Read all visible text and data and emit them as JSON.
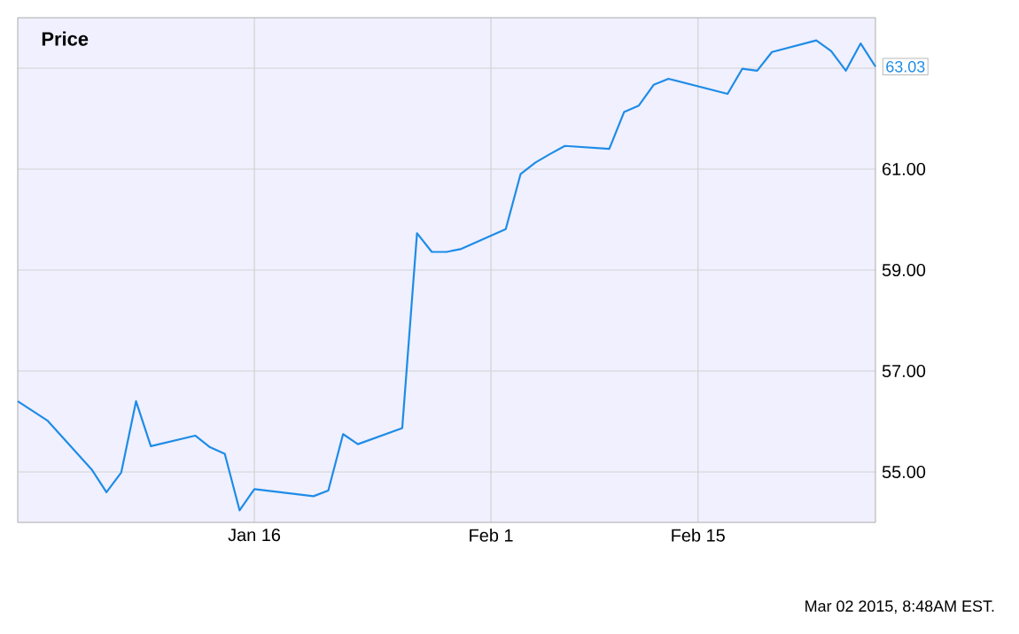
{
  "chart_data": {
    "type": "line",
    "title": "Price",
    "x": [
      "2014-12-31",
      "2015-01-02",
      "2015-01-05",
      "2015-01-06",
      "2015-01-07",
      "2015-01-08",
      "2015-01-09",
      "2015-01-12",
      "2015-01-13",
      "2015-01-14",
      "2015-01-15",
      "2015-01-16",
      "2015-01-20",
      "2015-01-21",
      "2015-01-22",
      "2015-01-23",
      "2015-01-26",
      "2015-01-27",
      "2015-01-28",
      "2015-01-29",
      "2015-01-30",
      "2015-02-02",
      "2015-02-03",
      "2015-02-04",
      "2015-02-05",
      "2015-02-06",
      "2015-02-09",
      "2015-02-10",
      "2015-02-11",
      "2015-02-12",
      "2015-02-13",
      "2015-02-17",
      "2015-02-18",
      "2015-02-19",
      "2015-02-20",
      "2015-02-23",
      "2015-02-24",
      "2015-02-25",
      "2015-02-26",
      "2015-02-27"
    ],
    "series": [
      {
        "color": "#1e8ce6",
        "values": [
          56.4,
          56.02,
          55.05,
          54.6,
          54.99,
          56.4,
          55.51,
          55.72,
          55.49,
          55.36,
          54.24,
          54.66,
          54.52,
          54.63,
          55.75,
          55.55,
          55.87,
          59.73,
          59.36,
          59.36,
          59.42,
          59.81,
          60.9,
          61.13,
          61.3,
          61.46,
          61.4,
          62.13,
          62.26,
          62.67,
          62.79,
          62.49,
          62.99,
          62.95,
          63.32,
          63.55,
          63.34,
          62.95,
          63.49,
          63.03
        ]
      }
    ],
    "xlim": [
      "2014-12-31",
      "2015-02-27"
    ],
    "xticks": [
      {
        "value": "2015-01-16",
        "label": "Jan 16"
      },
      {
        "value": "2015-02-01",
        "label": "Feb 1"
      },
      {
        "value": "2015-02-15",
        "label": "Feb 15"
      }
    ],
    "ylim": [
      54,
      64
    ],
    "yticks": [
      {
        "value": 55,
        "label": "55.00"
      },
      {
        "value": 57,
        "label": "57.00"
      },
      {
        "value": 59,
        "label": "59.00"
      },
      {
        "value": 61,
        "label": "61.00"
      },
      {
        "value": 63,
        "label": null
      }
    ],
    "grid": true,
    "marker": "none",
    "line_style": "solid",
    "annotations": [
      {
        "text": "63.03",
        "x": "2015-02-27",
        "y": 63.03
      },
      "Mar 02 2015, 8:48AM EST."
    ]
  }
}
